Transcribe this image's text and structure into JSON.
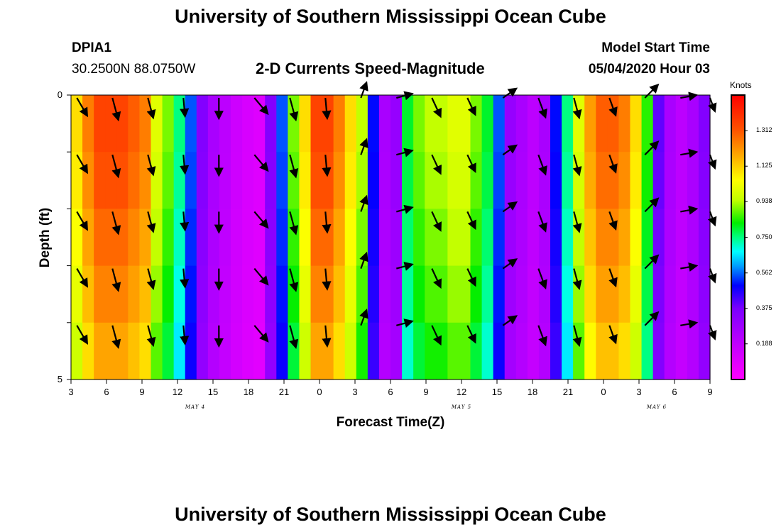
{
  "header": {
    "title": "University of Southern Mississippi Ocean Cube",
    "station": "DPIA1",
    "coordinates": "30.2500N 88.0750W",
    "plot_title": "2-D Currents Speed-Magnitude",
    "model_start_label": "Model Start Time",
    "model_start_value": "05/04/2020 Hour 03"
  },
  "footer": {
    "title": "University of Southern Mississippi Ocean Cube"
  },
  "chart_data": {
    "type": "heatmap",
    "title": "2-D Currents Speed-Magnitude",
    "xlabel": "Forecast Time(Z)",
    "ylabel": "Depth (ft)",
    "x_ticks": [
      "3",
      "6",
      "9",
      "12",
      "15",
      "18",
      "21",
      "0",
      "3",
      "6",
      "9",
      "12",
      "15",
      "18",
      "21",
      "0",
      "3",
      "6",
      "9"
    ],
    "x_range_hours": [
      0,
      54
    ],
    "day_labels": [
      {
        "label": "MAY 4",
        "hour": 10.5
      },
      {
        "label": "MAY 5",
        "hour": 33
      },
      {
        "label": "MAY 6",
        "hour": 49.5
      }
    ],
    "y_ticks": [
      "0",
      "",
      "",
      "",
      "",
      "5"
    ],
    "ylim": [
      0,
      5
    ],
    "colorbar": {
      "unit": "Knots",
      "vmin": 0.0,
      "vmax": 1.5,
      "ticks": [
        "1.312",
        "1.125",
        "0.938",
        "0.750",
        "0.562",
        "0.375",
        "0.188"
      ],
      "tick_values": [
        1.312,
        1.125,
        0.938,
        0.75,
        0.562,
        0.375,
        0.188
      ]
    },
    "speed_knots_by_hour": [
      1.1,
      1.25,
      1.35,
      1.35,
      1.35,
      1.3,
      1.25,
      1.0,
      0.9,
      0.75,
      0.55,
      0.35,
      0.25,
      0.2,
      0.15,
      0.12,
      0.1,
      0.35,
      0.55,
      0.9,
      1.1,
      1.35,
      1.35,
      1.25,
      1.1,
      0.95,
      0.5,
      0.25,
      0.3,
      0.8,
      0.9,
      0.95,
      0.95,
      1.0,
      1.0,
      0.9,
      0.8,
      0.55,
      0.3,
      0.25,
      0.2,
      0.25,
      0.5,
      0.75,
      1.0,
      1.2,
      1.3,
      1.3,
      1.25,
      1.1,
      0.85,
      0.4,
      0.25,
      0.2,
      0.25,
      0.35
    ],
    "depth_factor": [
      1.0,
      0.98,
      0.95,
      0.92,
      0.88
    ],
    "vectors_note": "current direction arrows",
    "arrow_hours": [
      0.5,
      3.5,
      6.5,
      9.5,
      12.5,
      15.5,
      18.5,
      21.5,
      24.5,
      27.5,
      30.5,
      33.5,
      36.5,
      39.5,
      42.5,
      45.5,
      48.5,
      51.5,
      54
    ],
    "arrow_direction_deg": [
      150,
      165,
      165,
      175,
      180,
      140,
      165,
      175,
      20,
      75,
      155,
      155,
      55,
      160,
      165,
      160,
      45,
      80,
      160
    ],
    "arrow_speed_scale": [
      0.9,
      1.0,
      0.9,
      0.8,
      0.9,
      0.9,
      1.0,
      0.9,
      0.7,
      0.7,
      0.9,
      0.8,
      0.7,
      0.9,
      0.9,
      0.8,
      0.8,
      0.7,
      0.6
    ]
  }
}
